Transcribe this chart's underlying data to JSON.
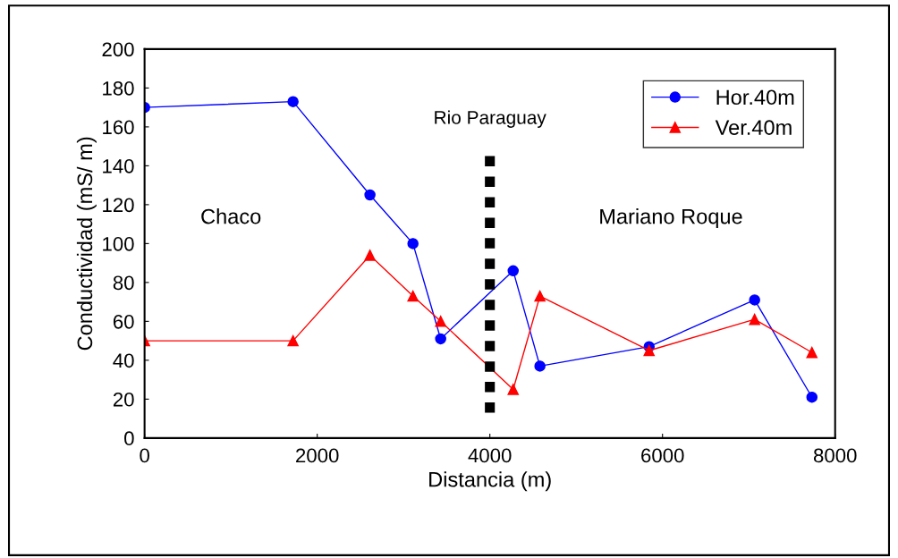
{
  "chart_data": {
    "type": "line",
    "xlabel": "Distancia (m)",
    "ylabel": "Conductividad (mS/ m)",
    "xlim": [
      0,
      8000
    ],
    "xticks": [
      0,
      2000,
      4000,
      6000,
      8000
    ],
    "ylim": [
      0,
      200
    ],
    "yticks": [
      0,
      20,
      40,
      60,
      80,
      100,
      120,
      140,
      160,
      180,
      200
    ],
    "grid": false,
    "legend": "top right",
    "line_style": "solid",
    "series": [
      {
        "name": "Hor.40m",
        "color": "#0000ff",
        "marker": "circle",
        "x": [
          0,
          1720,
          2611,
          3109,
          3430,
          4270,
          4580,
          5845,
          7067,
          7731
        ],
        "values": [
          170,
          173,
          125,
          100,
          51,
          86,
          37,
          47,
          71,
          21
        ]
      },
      {
        "name": "Ver.40m",
        "color": "#ff0000",
        "marker": "triangle",
        "x": [
          0,
          1720,
          2611,
          3109,
          3430,
          4270,
          4580,
          5845,
          7067,
          7731
        ],
        "values": [
          50,
          50,
          94,
          73,
          60,
          25,
          73,
          45,
          61,
          44
        ]
      },
      {
        "color": "#000000",
        "marker": "none",
        "line_style": "dotted",
        "x": [
          4000,
          4000
        ],
        "values": [
          13,
          145
        ]
      }
    ],
    "annotations": [
      "Rio Paraguay",
      "Chaco",
      "Mariano Roque"
    ]
  }
}
